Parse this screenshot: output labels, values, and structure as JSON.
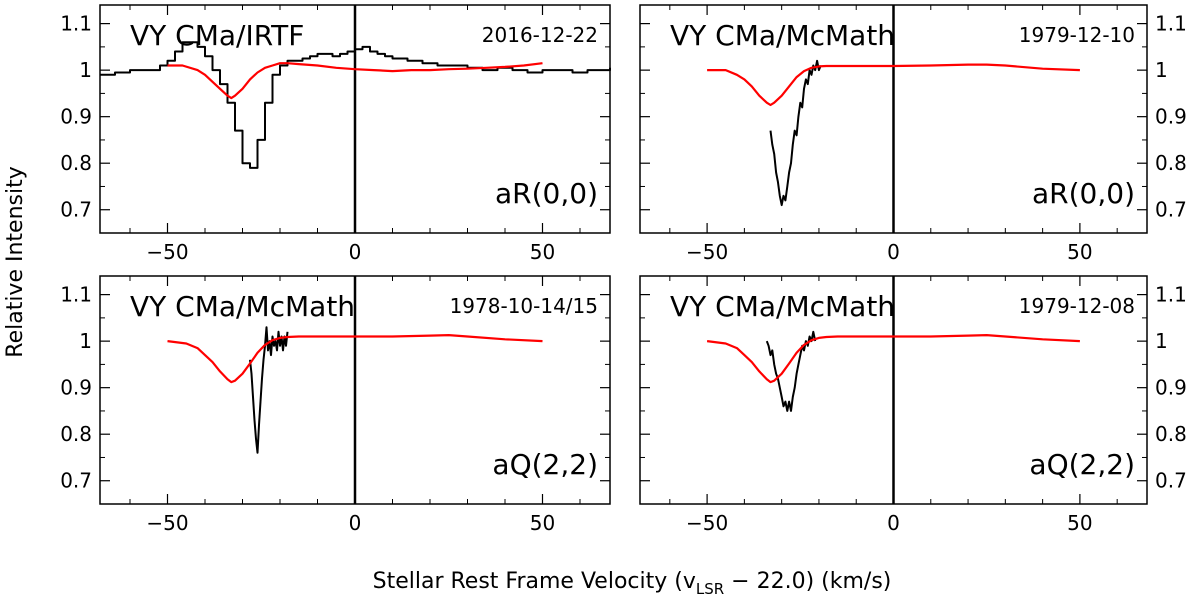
{
  "figure": {
    "ylabel": "Relative Intensity",
    "xlabel_main": "Stellar Rest Frame Velocity (v",
    "xlabel_sub": "LSR",
    "xlabel_tail": " − 22.0) (km/s)"
  },
  "colors": {
    "observed": "#000000",
    "model": "#ff0000",
    "axes": "#000000"
  },
  "chart_data": [
    {
      "type": "line",
      "title": "VY CMa/IRTF",
      "date": "2016-12-22",
      "transition": "aR(0,0)",
      "xlim": [
        -68,
        68
      ],
      "ylim": [
        0.65,
        1.14
      ],
      "x_ticks": [
        -50,
        0,
        50
      ],
      "x_tick_labels": [
        "−50",
        "0",
        "50"
      ],
      "y_ticks": [
        0.7,
        0.8,
        0.9,
        1.0,
        1.1
      ],
      "y_tick_labels": [
        "0.7",
        "0.8",
        "0.9",
        "1",
        "1.1"
      ],
      "y_tick_side": "left",
      "series": [
        {
          "name": "observed",
          "x": [
            -68,
            -64,
            -60,
            -56,
            -52,
            -50,
            -48,
            -46,
            -44,
            -42,
            -40,
            -38,
            -36,
            -34,
            -32,
            -30,
            -28,
            -26,
            -24,
            -22,
            -20,
            -18,
            -16,
            -14,
            -12,
            -10,
            -8,
            -6,
            -4,
            -2,
            0,
            2,
            4,
            6,
            8,
            10,
            14,
            18,
            22,
            26,
            30,
            34,
            38,
            42,
            46,
            50,
            54,
            58,
            62,
            66,
            68
          ],
          "y": [
            0.99,
            0.995,
            1.0,
            1.0,
            1.01,
            1.02,
            1.04,
            1.06,
            1.06,
            1.05,
            1.03,
            1.0,
            0.97,
            0.93,
            0.87,
            0.8,
            0.79,
            0.85,
            0.93,
            0.99,
            1.01,
            1.02,
            1.02,
            1.025,
            1.03,
            1.035,
            1.035,
            1.03,
            1.035,
            1.04,
            1.045,
            1.05,
            1.04,
            1.035,
            1.03,
            1.025,
            1.02,
            1.015,
            1.01,
            1.01,
            1.005,
            1.0,
            1.005,
            1.0,
            0.995,
            1.0,
            1.0,
            0.995,
            1.0,
            1.0,
            1.005
          ]
        },
        {
          "name": "model",
          "x": [
            -50,
            -46,
            -42,
            -40,
            -38,
            -36,
            -34,
            -33,
            -32,
            -30,
            -28,
            -26,
            -24,
            -22,
            -20,
            -18,
            -15,
            -10,
            -5,
            0,
            5,
            10,
            15,
            20,
            25,
            30,
            35,
            40,
            45,
            50
          ],
          "y": [
            1.01,
            1.01,
            1.0,
            0.99,
            0.975,
            0.96,
            0.945,
            0.94,
            0.945,
            0.96,
            0.98,
            0.995,
            1.005,
            1.01,
            1.015,
            1.015,
            1.013,
            1.01,
            1.005,
            1.002,
            1.0,
            0.998,
            1.0,
            1.0,
            1.002,
            1.003,
            1.005,
            1.007,
            1.01,
            1.015
          ]
        }
      ]
    },
    {
      "type": "line",
      "title": "VY CMa/McMath",
      "date": "1979-12-10",
      "transition": "aR(0,0)",
      "xlim": [
        -68,
        68
      ],
      "ylim": [
        0.65,
        1.14
      ],
      "x_ticks": [
        -50,
        0,
        50
      ],
      "x_tick_labels": [
        "−50",
        "0",
        "50"
      ],
      "y_ticks": [
        0.7,
        0.8,
        0.9,
        1.0,
        1.1
      ],
      "y_tick_labels": [
        "0.7",
        "0.8",
        "0.9",
        "1",
        "1.1"
      ],
      "y_tick_side": "right",
      "series": [
        {
          "name": "observed",
          "x": [
            -33,
            -32.5,
            -32,
            -31.5,
            -31,
            -30.5,
            -30,
            -29.5,
            -29,
            -28.5,
            -28,
            -27.5,
            -27,
            -26.5,
            -26,
            -25.5,
            -25,
            -24.5,
            -24,
            -23.5,
            -23,
            -22.5,
            -22,
            -21.5,
            -21,
            -20.5,
            -20,
            -19.5
          ],
          "y": [
            0.87,
            0.84,
            0.82,
            0.78,
            0.76,
            0.73,
            0.71,
            0.73,
            0.72,
            0.75,
            0.78,
            0.8,
            0.84,
            0.87,
            0.86,
            0.9,
            0.93,
            0.92,
            0.96,
            0.98,
            0.97,
            1.0,
            0.99,
            1.01,
            1.0,
            1.02,
            1.0,
            1.01
          ]
        },
        {
          "name": "model",
          "x": [
            -50,
            -45,
            -42,
            -40,
            -38,
            -36,
            -34,
            -33,
            -32,
            -30,
            -28,
            -26,
            -24,
            -22,
            -20,
            -18,
            -15,
            -10,
            -5,
            0,
            10,
            20,
            25,
            30,
            40,
            50
          ],
          "y": [
            1.0,
            1.0,
            0.99,
            0.98,
            0.965,
            0.945,
            0.93,
            0.925,
            0.93,
            0.945,
            0.965,
            0.985,
            0.998,
            1.005,
            1.008,
            1.009,
            1.009,
            1.009,
            1.009,
            1.009,
            1.01,
            1.012,
            1.012,
            1.01,
            1.003,
            1.0
          ]
        }
      ]
    },
    {
      "type": "line",
      "title": "VY CMa/McMath",
      "date": "1978-10-14/15",
      "transition": "aQ(2,2)",
      "xlim": [
        -68,
        68
      ],
      "ylim": [
        0.65,
        1.14
      ],
      "x_ticks": [
        -50,
        0,
        50
      ],
      "x_tick_labels": [
        "−50",
        "0",
        "50"
      ],
      "y_ticks": [
        0.7,
        0.8,
        0.9,
        1.0,
        1.1
      ],
      "y_tick_labels": [
        "0.7",
        "0.8",
        "0.9",
        "1",
        "1.1"
      ],
      "y_tick_side": "left",
      "series": [
        {
          "name": "observed",
          "x": [
            -28,
            -27.6,
            -27.2,
            -26.8,
            -26.4,
            -26,
            -25.6,
            -25.2,
            -24.8,
            -24.4,
            -24,
            -23.6,
            -23.2,
            -22.8,
            -22.4,
            -22,
            -21.6,
            -21.2,
            -20.8,
            -20.4,
            -20,
            -19.6,
            -19.2,
            -18.8,
            -18.4,
            -18
          ],
          "y": [
            0.96,
            0.93,
            0.88,
            0.83,
            0.79,
            0.76,
            0.82,
            0.87,
            0.92,
            0.96,
            0.99,
            1.03,
            0.98,
            1.0,
            0.97,
            1.01,
            0.99,
            1.0,
            0.98,
            1.02,
            0.99,
            1.01,
            0.98,
            1.01,
            0.99,
            1.02
          ]
        },
        {
          "name": "model",
          "x": [
            -50,
            -45,
            -42,
            -40,
            -38,
            -36,
            -34,
            -33,
            -32,
            -30,
            -28,
            -26,
            -24,
            -22,
            -20,
            -18,
            -15,
            -10,
            -5,
            0,
            10,
            20,
            25,
            30,
            40,
            50
          ],
          "y": [
            1.0,
            0.995,
            0.985,
            0.97,
            0.955,
            0.935,
            0.918,
            0.912,
            0.915,
            0.93,
            0.952,
            0.975,
            0.992,
            1.002,
            1.007,
            1.009,
            1.01,
            1.01,
            1.01,
            1.01,
            1.01,
            1.012,
            1.013,
            1.01,
            1.004,
            1.0
          ]
        }
      ]
    },
    {
      "type": "line",
      "title": "VY CMa/McMath",
      "date": "1979-12-08",
      "transition": "aQ(2,2)",
      "xlim": [
        -68,
        68
      ],
      "ylim": [
        0.65,
        1.14
      ],
      "x_ticks": [
        -50,
        0,
        50
      ],
      "x_tick_labels": [
        "−50",
        "0",
        "50"
      ],
      "y_ticks": [
        0.7,
        0.8,
        0.9,
        1.0,
        1.1
      ],
      "y_tick_labels": [
        "0.7",
        "0.8",
        "0.9",
        "1",
        "1.1"
      ],
      "y_tick_side": "right",
      "series": [
        {
          "name": "observed",
          "x": [
            -34,
            -33.5,
            -33,
            -32.5,
            -32,
            -31.5,
            -31,
            -30.5,
            -30,
            -29.5,
            -29,
            -28.5,
            -28,
            -27.5,
            -27,
            -26.5,
            -26,
            -25.5,
            -25,
            -24.5,
            -24,
            -23.5,
            -23,
            -22.5,
            -22,
            -21.5,
            -21
          ],
          "y": [
            1.0,
            0.99,
            0.97,
            0.98,
            0.95,
            0.93,
            0.92,
            0.9,
            0.88,
            0.86,
            0.87,
            0.85,
            0.87,
            0.85,
            0.88,
            0.9,
            0.93,
            0.95,
            0.97,
            0.99,
            0.98,
            1.0,
            0.99,
            1.01,
            1.0,
            1.02,
            1.0
          ]
        },
        {
          "name": "model",
          "x": [
            -50,
            -45,
            -42,
            -40,
            -38,
            -36,
            -34,
            -33,
            -32,
            -30,
            -28,
            -26,
            -24,
            -22,
            -20,
            -18,
            -15,
            -10,
            -5,
            0,
            10,
            20,
            25,
            30,
            40,
            50
          ],
          "y": [
            1.0,
            0.995,
            0.985,
            0.97,
            0.955,
            0.935,
            0.918,
            0.912,
            0.915,
            0.93,
            0.952,
            0.975,
            0.992,
            1.002,
            1.007,
            1.009,
            1.01,
            1.01,
            1.01,
            1.01,
            1.01,
            1.012,
            1.013,
            1.01,
            1.004,
            1.0
          ]
        }
      ]
    }
  ]
}
